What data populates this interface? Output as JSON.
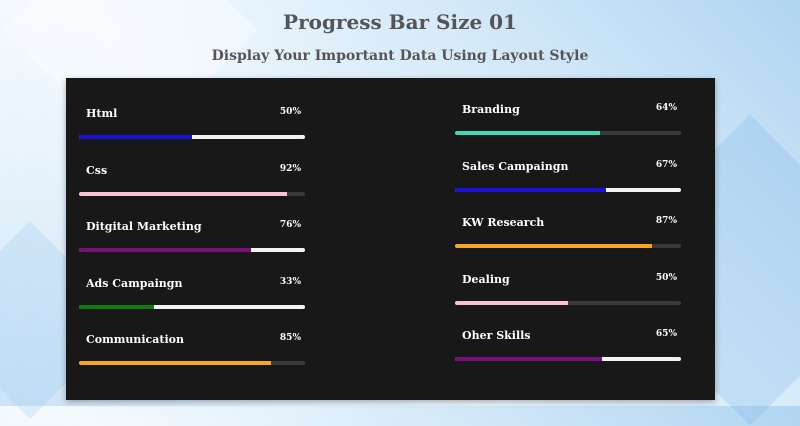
{
  "header": {
    "title": "Progress Bar Size 01",
    "subtitle": "Display Your Important Data Using Layout Style"
  },
  "left_skills": [
    {
      "label": "Html",
      "percent_text": "50%",
      "value": 50,
      "color": "#1a10d8",
      "track": "#f2f2f2"
    },
    {
      "label": "Css",
      "percent_text": "92%",
      "value": 92,
      "color": "#f7c4cf",
      "track": "#3a3a3a"
    },
    {
      "label": "Ditgital Marketing",
      "percent_text": "76%",
      "value": 76,
      "color": "#7a0f7c",
      "track": "#f2f2f2"
    },
    {
      "label": "Ads Campaingn",
      "percent_text": "33%",
      "value": 33,
      "color": "#107a0e",
      "track": "#f2f2f2"
    },
    {
      "label": "Communication",
      "percent_text": "85%",
      "value": 85,
      "color": "#f2a823",
      "track": "#3a3a3a"
    }
  ],
  "right_skills": [
    {
      "label": "Branding",
      "percent_text": "64%",
      "value": 64,
      "color": "#3fd9b8",
      "track": "#3a3a3a"
    },
    {
      "label": "Sales Campaingn",
      "percent_text": "67%",
      "value": 67,
      "color": "#1a10d8",
      "track": "#f2f2f2"
    },
    {
      "label": "KW Research",
      "percent_text": "87%",
      "value": 87,
      "color": "#f2a823",
      "track": "#3a3a3a"
    },
    {
      "label": "Dealing",
      "percent_text": "50%",
      "value": 50,
      "color": "#f7c4cf",
      "track": "#3a3a3a"
    },
    {
      "label": "Oher Skills",
      "percent_text": "65%",
      "value": 65,
      "color": "#7a0f7c",
      "track": "#f2f2f2"
    }
  ]
}
